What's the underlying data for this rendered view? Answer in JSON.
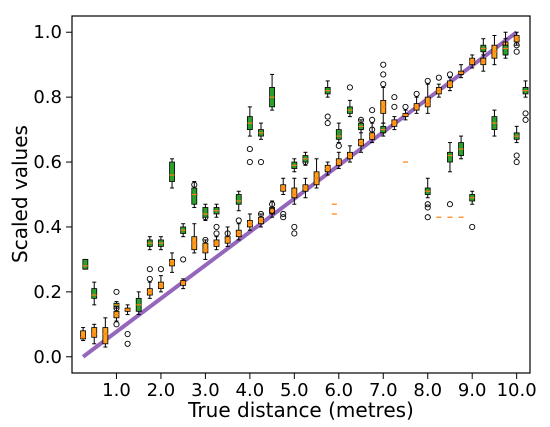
{
  "chart_data": {
    "type": "box",
    "xlabel": "True distance (metres)",
    "ylabel": "Scaled values",
    "xlim": [
      0,
      10.3
    ],
    "ylim": [
      -0.05,
      1.05
    ],
    "xticks": [
      {
        "x": 1.0,
        "label": "1.0"
      },
      {
        "x": 2.0,
        "label": "2.0"
      },
      {
        "x": 3.0,
        "label": "3.0"
      },
      {
        "x": 4.0,
        "label": "4.0"
      },
      {
        "x": 5.0,
        "label": "5.0"
      },
      {
        "x": 6.0,
        "label": "6.0"
      },
      {
        "x": 7.0,
        "label": "7.0"
      },
      {
        "x": 8.0,
        "label": "8.0"
      },
      {
        "x": 9.0,
        "label": "9.0"
      },
      {
        "x": 10.0,
        "label": "10.0"
      }
    ],
    "yticks": [
      {
        "y": 0.0,
        "label": "0.0"
      },
      {
        "y": 0.2,
        "label": "0.2"
      },
      {
        "y": 0.4,
        "label": "0.4"
      },
      {
        "y": 0.6,
        "label": "0.6"
      },
      {
        "y": 0.8,
        "label": "0.8"
      },
      {
        "y": 1.0,
        "label": "1.0"
      }
    ],
    "reference_line": {
      "x": [
        0.25,
        10.0
      ],
      "y": [
        0.0,
        1.0
      ],
      "color": "#9467bd"
    },
    "colors": {
      "orange_box": "#ff9f1a",
      "green_box": "#2ca02c",
      "median": "#ff7f0e",
      "whisker": "#000000"
    },
    "series": [
      {
        "color": "orange",
        "boxes": [
          {
            "x": 0.25,
            "min": 0.05,
            "q1": 0.055,
            "median": 0.06,
            "q3": 0.08,
            "max": 0.09,
            "outliers": []
          },
          {
            "x": 0.5,
            "min": 0.04,
            "q1": 0.06,
            "median": 0.07,
            "q3": 0.09,
            "max": 0.1,
            "outliers": []
          },
          {
            "x": 0.75,
            "min": 0.03,
            "q1": 0.04,
            "median": 0.07,
            "q3": 0.09,
            "max": 0.12,
            "outliers": []
          },
          {
            "x": 1.0,
            "min": 0.11,
            "q1": 0.12,
            "median": 0.13,
            "q3": 0.14,
            "max": 0.15,
            "outliers": [
              0.1,
              0.2,
              0.15
            ]
          },
          {
            "x": 1.25,
            "min": 0.13,
            "q1": 0.14,
            "median": 0.145,
            "q3": 0.15,
            "max": 0.16,
            "outliers": [
              0.07,
              0.04
            ]
          },
          {
            "x": 1.75,
            "min": 0.18,
            "q1": 0.19,
            "median": 0.2,
            "q3": 0.21,
            "max": 0.23,
            "outliers": [
              0.24,
              0.27
            ]
          },
          {
            "x": 2.0,
            "min": 0.2,
            "q1": 0.21,
            "median": 0.22,
            "q3": 0.23,
            "max": 0.25,
            "outliers": [
              0.27
            ]
          },
          {
            "x": 2.25,
            "min": 0.26,
            "q1": 0.28,
            "median": 0.29,
            "q3": 0.3,
            "max": 0.32,
            "outliers": []
          },
          {
            "x": 2.5,
            "min": 0.21,
            "q1": 0.22,
            "median": 0.23,
            "q3": 0.235,
            "max": 0.24,
            "outliers": [
              0.3
            ]
          },
          {
            "x": 2.75,
            "min": 0.32,
            "q1": 0.33,
            "median": 0.35,
            "q3": 0.37,
            "max": 0.41,
            "outliers": [
              0.5,
              0.53
            ]
          },
          {
            "x": 3.0,
            "min": 0.3,
            "q1": 0.32,
            "median": 0.33,
            "q3": 0.35,
            "max": 0.36,
            "outliers": [
              0.36,
              0.43
            ]
          },
          {
            "x": 3.25,
            "min": 0.33,
            "q1": 0.34,
            "median": 0.35,
            "q3": 0.36,
            "max": 0.37,
            "outliers": [
              0.38,
              0.4
            ]
          },
          {
            "x": 3.5,
            "min": 0.34,
            "q1": 0.35,
            "median": 0.36,
            "q3": 0.37,
            "max": 0.4,
            "outliers": [
              0.38
            ]
          },
          {
            "x": 3.75,
            "min": 0.36,
            "q1": 0.37,
            "median": 0.38,
            "q3": 0.39,
            "max": 0.41,
            "outliers": [
              0.42
            ]
          },
          {
            "x": 4.0,
            "min": 0.39,
            "q1": 0.4,
            "median": 0.41,
            "q3": 0.42,
            "max": 0.44,
            "outliers": []
          },
          {
            "x": 4.25,
            "min": 0.4,
            "q1": 0.41,
            "median": 0.42,
            "q3": 0.43,
            "max": 0.44,
            "outliers": [
              0.44
            ]
          },
          {
            "x": 4.5,
            "min": 0.43,
            "q1": 0.44,
            "median": 0.45,
            "q3": 0.46,
            "max": 0.48,
            "outliers": [
              0.47,
              0.45
            ]
          },
          {
            "x": 4.75,
            "min": 0.5,
            "q1": 0.51,
            "median": 0.52,
            "q3": 0.53,
            "max": 0.55,
            "outliers": [
              0.43,
              0.44
            ]
          },
          {
            "x": 5.0,
            "min": 0.47,
            "q1": 0.49,
            "median": 0.5,
            "q3": 0.52,
            "max": 0.55,
            "outliers": [
              0.4,
              0.38
            ]
          },
          {
            "x": 5.25,
            "min": 0.49,
            "q1": 0.51,
            "median": 0.52,
            "q3": 0.53,
            "max": 0.55,
            "outliers": [
              0.6
            ]
          },
          {
            "x": 5.5,
            "min": 0.52,
            "q1": 0.53,
            "median": 0.55,
            "q3": 0.57,
            "max": 0.61,
            "outliers": []
          },
          {
            "x": 5.75,
            "min": 0.56,
            "q1": 0.57,
            "median": 0.58,
            "q3": 0.59,
            "max": 0.6,
            "outliers": []
          },
          {
            "x": 6.0,
            "min": 0.58,
            "q1": 0.59,
            "median": 0.6,
            "q3": 0.61,
            "max": 0.63,
            "outliers": [
              0.65
            ]
          },
          {
            "x": 6.25,
            "min": 0.6,
            "q1": 0.61,
            "median": 0.62,
            "q3": 0.63,
            "max": 0.65,
            "outliers": []
          },
          {
            "x": 6.5,
            "min": 0.63,
            "q1": 0.65,
            "median": 0.66,
            "q3": 0.67,
            "max": 0.7,
            "outliers": [
              0.73
            ]
          },
          {
            "x": 6.75,
            "min": 0.66,
            "q1": 0.67,
            "median": 0.68,
            "q3": 0.69,
            "max": 0.72,
            "outliers": [
              0.7,
              0.73,
              0.76
            ]
          },
          {
            "x": 7.0,
            "min": 0.72,
            "q1": 0.75,
            "median": 0.77,
            "q3": 0.79,
            "max": 0.83,
            "outliers": [
              0.84,
              0.87,
              0.9
            ]
          },
          {
            "x": 7.25,
            "min": 0.7,
            "q1": 0.71,
            "median": 0.72,
            "q3": 0.73,
            "max": 0.74,
            "outliers": [
              0.77,
              0.8
            ]
          },
          {
            "x": 7.5,
            "min": 0.73,
            "q1": 0.74,
            "median": 0.745,
            "q3": 0.75,
            "max": 0.76,
            "outliers": [
              0.77
            ]
          },
          {
            "x": 7.75,
            "min": 0.75,
            "q1": 0.76,
            "median": 0.77,
            "q3": 0.78,
            "max": 0.8,
            "outliers": [
              0.81
            ]
          },
          {
            "x": 8.0,
            "min": 0.75,
            "q1": 0.77,
            "median": 0.78,
            "q3": 0.8,
            "max": 0.84,
            "outliers": [
              0.85
            ]
          },
          {
            "x": 8.25,
            "min": 0.8,
            "q1": 0.81,
            "median": 0.82,
            "q3": 0.83,
            "max": 0.84,
            "outliers": [
              0.86
            ]
          },
          {
            "x": 8.5,
            "min": 0.82,
            "q1": 0.83,
            "median": 0.84,
            "q3": 0.85,
            "max": 0.86,
            "outliers": [
              0.87
            ]
          },
          {
            "x": 8.75,
            "min": 0.86,
            "q1": 0.87,
            "median": 0.875,
            "q3": 0.88,
            "max": 0.9,
            "outliers": []
          },
          {
            "x": 9.0,
            "min": 0.89,
            "q1": 0.9,
            "median": 0.91,
            "q3": 0.92,
            "max": 0.93,
            "outliers": []
          },
          {
            "x": 9.25,
            "min": 0.88,
            "q1": 0.9,
            "median": 0.91,
            "q3": 0.92,
            "max": 0.94,
            "outliers": [
              0.95
            ]
          },
          {
            "x": 9.5,
            "min": 0.9,
            "q1": 0.92,
            "median": 0.94,
            "q3": 0.96,
            "max": 0.99,
            "outliers": []
          },
          {
            "x": 9.75,
            "min": 0.93,
            "q1": 0.94,
            "median": 0.95,
            "q3": 0.97,
            "max": 1.0,
            "outliers": []
          },
          {
            "x": 10.0,
            "min": 0.96,
            "q1": 0.97,
            "median": 0.98,
            "q3": 0.99,
            "max": 1.0,
            "outliers": [
              0.94,
              0.96
            ]
          }
        ]
      },
      {
        "color": "green",
        "boxes": [
          {
            "x": 0.3,
            "min": 0.27,
            "q1": 0.27,
            "median": 0.28,
            "q3": 0.3,
            "max": 0.3,
            "outliers": []
          },
          {
            "x": 0.5,
            "min": 0.16,
            "q1": 0.18,
            "median": 0.19,
            "q3": 0.21,
            "max": 0.23,
            "outliers": []
          },
          {
            "x": 1.0,
            "min": 0.15,
            "q1": 0.155,
            "median": 0.16,
            "q3": 0.165,
            "max": 0.17,
            "outliers": []
          },
          {
            "x": 1.5,
            "min": 0.13,
            "q1": 0.14,
            "median": 0.16,
            "q3": 0.18,
            "max": 0.2,
            "outliers": []
          },
          {
            "x": 1.75,
            "min": 0.33,
            "q1": 0.34,
            "median": 0.35,
            "q3": 0.36,
            "max": 0.37,
            "outliers": []
          },
          {
            "x": 2.0,
            "min": 0.33,
            "q1": 0.34,
            "median": 0.35,
            "q3": 0.36,
            "max": 0.37,
            "outliers": []
          },
          {
            "x": 2.25,
            "min": 0.52,
            "q1": 0.54,
            "median": 0.56,
            "q3": 0.6,
            "max": 0.61,
            "outliers": []
          },
          {
            "x": 2.5,
            "min": 0.37,
            "q1": 0.38,
            "median": 0.39,
            "q3": 0.4,
            "max": 0.41,
            "outliers": []
          },
          {
            "x": 2.75,
            "min": 0.46,
            "q1": 0.47,
            "median": 0.5,
            "q3": 0.52,
            "max": 0.54,
            "outliers": []
          },
          {
            "x": 3.0,
            "min": 0.42,
            "q1": 0.43,
            "median": 0.44,
            "q3": 0.46,
            "max": 0.47,
            "outliers": []
          },
          {
            "x": 3.25,
            "min": 0.43,
            "q1": 0.44,
            "median": 0.45,
            "q3": 0.46,
            "max": 0.47,
            "outliers": []
          },
          {
            "x": 3.75,
            "min": 0.45,
            "q1": 0.47,
            "median": 0.48,
            "q3": 0.5,
            "max": 0.51,
            "outliers": []
          },
          {
            "x": 4.0,
            "min": 0.68,
            "q1": 0.7,
            "median": 0.72,
            "q3": 0.74,
            "max": 0.77,
            "outliers": [
              0.6,
              0.64
            ]
          },
          {
            "x": 4.25,
            "min": 0.67,
            "q1": 0.68,
            "median": 0.69,
            "q3": 0.7,
            "max": 0.72,
            "outliers": [
              0.6
            ]
          },
          {
            "x": 4.5,
            "min": 0.76,
            "q1": 0.77,
            "median": 0.8,
            "q3": 0.83,
            "max": 0.87,
            "outliers": []
          },
          {
            "x": 5.0,
            "min": 0.57,
            "q1": 0.58,
            "median": 0.59,
            "q3": 0.6,
            "max": 0.61,
            "outliers": []
          },
          {
            "x": 5.25,
            "min": 0.59,
            "q1": 0.6,
            "median": 0.61,
            "q3": 0.62,
            "max": 0.63,
            "outliers": []
          },
          {
            "x": 5.75,
            "min": 0.8,
            "q1": 0.81,
            "median": 0.82,
            "q3": 0.83,
            "max": 0.85,
            "outliers": [
              0.72,
              0.74
            ]
          },
          {
            "x": 6.0,
            "min": 0.66,
            "q1": 0.67,
            "median": 0.68,
            "q3": 0.7,
            "max": 0.72,
            "outliers": []
          },
          {
            "x": 6.25,
            "min": 0.74,
            "q1": 0.75,
            "median": 0.76,
            "q3": 0.77,
            "max": 0.79,
            "outliers": [
              0.83
            ]
          },
          {
            "x": 6.5,
            "min": 0.69,
            "q1": 0.7,
            "median": 0.71,
            "q3": 0.72,
            "max": 0.73,
            "outliers": []
          },
          {
            "x": 7.0,
            "min": 0.68,
            "q1": 0.69,
            "median": 0.7,
            "q3": 0.71,
            "max": 0.72,
            "outliers": []
          },
          {
            "x": 8.0,
            "min": 0.49,
            "q1": 0.5,
            "median": 0.51,
            "q3": 0.52,
            "max": 0.55,
            "outliers": [
              0.43,
              0.46,
              0.47
            ]
          },
          {
            "x": 8.5,
            "min": 0.57,
            "q1": 0.6,
            "median": 0.62,
            "q3": 0.63,
            "max": 0.66,
            "outliers": [
              0.47
            ]
          },
          {
            "x": 8.75,
            "min": 0.61,
            "q1": 0.62,
            "median": 0.64,
            "q3": 0.66,
            "max": 0.68,
            "outliers": []
          },
          {
            "x": 9.0,
            "min": 0.47,
            "q1": 0.48,
            "median": 0.49,
            "q3": 0.5,
            "max": 0.51,
            "outliers": [
              0.4
            ]
          },
          {
            "x": 9.25,
            "min": 0.93,
            "q1": 0.94,
            "median": 0.95,
            "q3": 0.96,
            "max": 0.98,
            "outliers": []
          },
          {
            "x": 9.5,
            "min": 0.68,
            "q1": 0.7,
            "median": 0.72,
            "q3": 0.74,
            "max": 0.76,
            "outliers": []
          },
          {
            "x": 9.75,
            "min": 0.92,
            "q1": 0.93,
            "median": 0.95,
            "q3": 0.96,
            "max": 0.98,
            "outliers": []
          },
          {
            "x": 10.0,
            "min": 0.66,
            "q1": 0.67,
            "median": 0.68,
            "q3": 0.69,
            "max": 0.71,
            "outliers": [
              0.6,
              0.62
            ]
          },
          {
            "x": 10.2,
            "min": 0.8,
            "q1": 0.81,
            "median": 0.82,
            "q3": 0.83,
            "max": 0.85,
            "outliers": [
              0.73,
              0.75
            ]
          }
        ]
      }
    ],
    "scattered_medians": [
      {
        "x": 5.9,
        "y": 0.47
      },
      {
        "x": 5.9,
        "y": 0.44
      },
      {
        "x": 7.5,
        "y": 0.6
      },
      {
        "x": 8.25,
        "y": 0.43
      },
      {
        "x": 8.5,
        "y": 0.43
      },
      {
        "x": 8.75,
        "y": 0.43
      }
    ]
  }
}
